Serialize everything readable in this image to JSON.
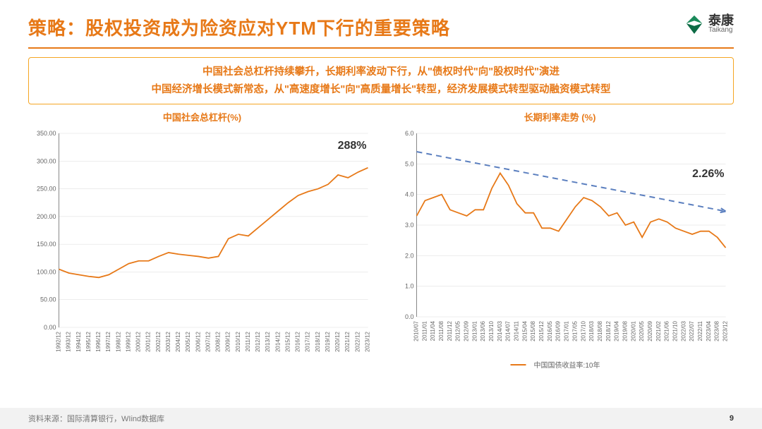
{
  "header": {
    "title": "策略：股权投资成为险资应对YTM下行的重要策略",
    "logo_cn": "泰康",
    "logo_en": "Taikang"
  },
  "subtitle": {
    "line1": "中国社会总杠杆持续攀升，长期利率波动下行，从\"债权时代\"向\"股权时代\"演进",
    "line2": "中国经济增长模式新常态，从\"高速度增长\"向\"高质量增长\"转型，经济发展模式转型驱动融资模式转型"
  },
  "chart_left": {
    "title": "中国社会总杠杆(%)",
    "type": "line",
    "series_color": "#e77918",
    "grid_color": "#d9d9d9",
    "background_color": "#ffffff",
    "ylim": [
      0,
      350
    ],
    "ytick_step": 50,
    "yticks": [
      "0.00",
      "50.00",
      "100.00",
      "150.00",
      "200.00",
      "250.00",
      "300.00",
      "350.00"
    ],
    "xlabels": [
      "1992/12",
      "1993/12",
      "1994/12",
      "1995/12",
      "1996/12",
      "1997/12",
      "1998/12",
      "1999/12",
      "2000/12",
      "2001/12",
      "2002/12",
      "2003/12",
      "2004/12",
      "2005/12",
      "2006/12",
      "2007/12",
      "2008/12",
      "2009/12",
      "2010/12",
      "2011/12",
      "2012/12",
      "2013/12",
      "2014/12",
      "2015/12",
      "2016/12",
      "2017/12",
      "2018/12",
      "2019/12",
      "2020/12",
      "2021/12",
      "2022/12",
      "2023/12"
    ],
    "values": [
      105,
      98,
      95,
      92,
      90,
      95,
      105,
      115,
      120,
      120,
      128,
      135,
      132,
      130,
      128,
      125,
      128,
      160,
      168,
      165,
      180,
      195,
      210,
      225,
      238,
      245,
      250,
      258,
      275,
      270,
      280,
      288
    ],
    "callout": "288%",
    "callout_fontsize": 16
  },
  "chart_right": {
    "title": "长期利率走势 (%)",
    "type": "line",
    "series_color": "#e77918",
    "trend_color": "#5b7fbf",
    "grid_color": "#d9d9d9",
    "background_color": "#ffffff",
    "legend": "中国国债收益率:10年",
    "ylim": [
      0,
      6
    ],
    "ytick_step": 1,
    "yticks": [
      "0.0",
      "1.0",
      "2.0",
      "3.0",
      "4.0",
      "5.0",
      "6.0"
    ],
    "xlabels": [
      "2010/07",
      "2011/01",
      "2011/04",
      "2011/08",
      "2011/12",
      "2012/05",
      "2012/09",
      "2013/01",
      "2013/06",
      "2013/10",
      "2014/03",
      "2014/07",
      "2014/11",
      "2015/04",
      "2015/08",
      "2015/12",
      "2016/05",
      "2016/09",
      "2017/01",
      "2017/05",
      "2017/10",
      "2018/03",
      "2018/08",
      "2018/12",
      "2019/04",
      "2019/08",
      "2020/01",
      "2020/05",
      "2020/09",
      "2021/02",
      "2021/06",
      "2021/10",
      "2022/03",
      "2022/07",
      "2022/11",
      "2023/04",
      "2023/08",
      "2023/12"
    ],
    "values": [
      3.3,
      3.8,
      3.9,
      4.0,
      3.5,
      3.4,
      3.3,
      3.5,
      3.5,
      4.2,
      4.7,
      4.3,
      3.7,
      3.4,
      3.4,
      2.9,
      2.9,
      2.8,
      3.2,
      3.6,
      3.9,
      3.8,
      3.6,
      3.3,
      3.4,
      3.0,
      3.1,
      2.6,
      3.1,
      3.2,
      3.1,
      2.9,
      2.8,
      2.7,
      2.8,
      2.8,
      2.6,
      2.26
    ],
    "trend": [
      [
        0,
        5.4
      ],
      [
        37,
        3.45
      ]
    ],
    "callout": "2.26%",
    "callout_fontsize": 16
  },
  "footer": {
    "source": "资料来源：国际清算银行，WIind数据库",
    "page": "9"
  },
  "style": {
    "accent": "#e77918",
    "title_color": "#e77918",
    "text_gray": "#666666"
  }
}
